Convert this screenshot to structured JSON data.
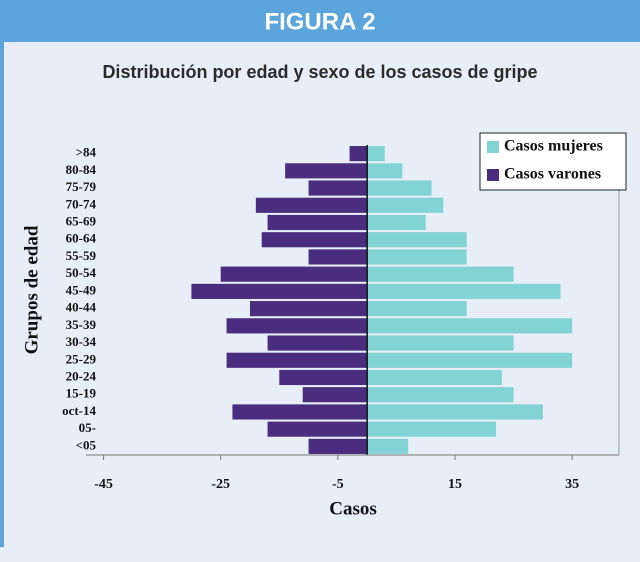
{
  "chart_data": {
    "type": "bar",
    "orientation": "horizontal",
    "title": "FIGURA 2",
    "subtitle": "Distribución por edad y sexo de los casos de gripe",
    "x_label": "Casos",
    "y_label": "Grupos de edad",
    "categories": [
      "<05",
      "05-",
      "oct-14",
      "15-19",
      "20-24",
      "25-29",
      "30-34",
      "35-39",
      "40-44",
      "45-49",
      "50-54",
      "55-59",
      "60-64",
      "65-69",
      "70-74",
      "75-79",
      "80-84",
      ">84"
    ],
    "series": [
      {
        "name": "Casos mujeres",
        "color": "#82d3d3",
        "values": [
          7,
          22,
          30,
          25,
          23,
          35,
          25,
          35,
          17,
          33,
          25,
          17,
          17,
          10,
          13,
          11,
          6,
          3
        ]
      },
      {
        "name": "Casos varones",
        "color": "#4b2d7f",
        "values": [
          -10,
          -17,
          -23,
          -11,
          -15,
          -24,
          -17,
          -24,
          -20,
          -30,
          -25,
          -10,
          -18,
          -17,
          -19,
          -10,
          -14,
          -3
        ]
      }
    ],
    "xlim": [
      -48,
      43
    ],
    "xticks": [
      -45,
      -25,
      -5,
      15,
      35
    ],
    "legend": "top-right"
  }
}
